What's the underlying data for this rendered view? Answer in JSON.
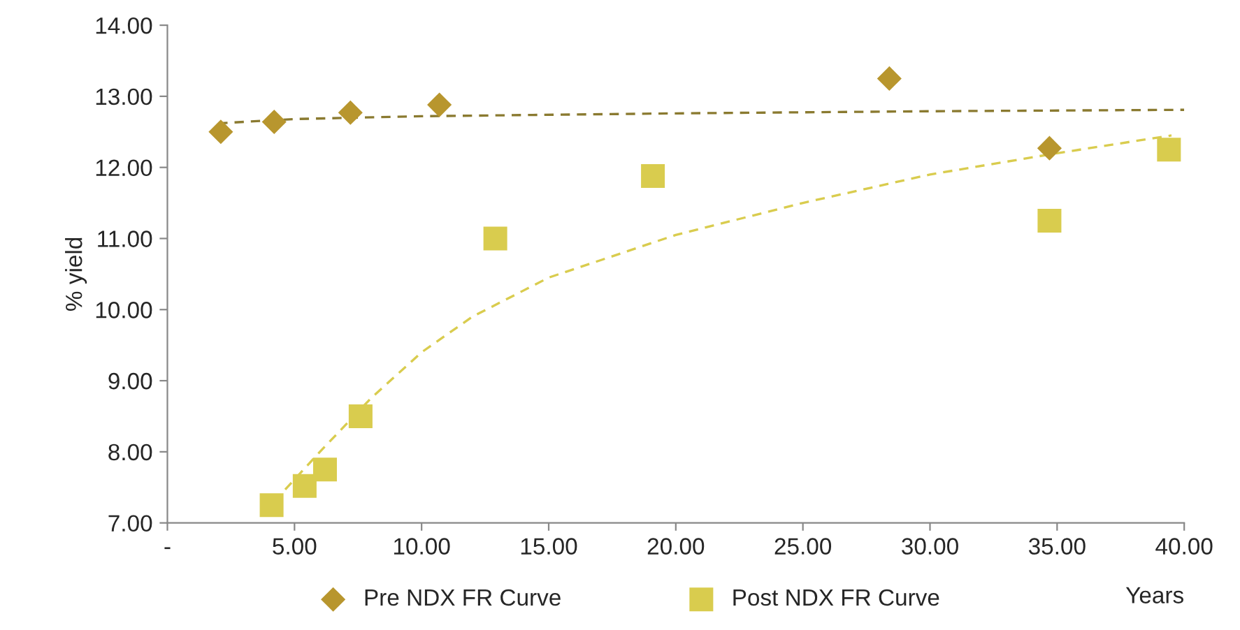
{
  "chart_data": {
    "type": "scatter",
    "xlabel": "Years",
    "ylabel": "% yield",
    "xlim": [
      0,
      40
    ],
    "xticks": [
      {
        "value": 0,
        "label": "-"
      },
      {
        "value": 5,
        "label": "5.00"
      },
      {
        "value": 10,
        "label": "10.00"
      },
      {
        "value": 15,
        "label": "15.00"
      },
      {
        "value": 20,
        "label": "20.00"
      },
      {
        "value": 25,
        "label": "25.00"
      },
      {
        "value": 30,
        "label": "30.00"
      },
      {
        "value": 35,
        "label": "35.00"
      },
      {
        "value": 40,
        "label": "40.00"
      }
    ],
    "ylim": [
      7,
      14
    ],
    "yticks": [
      {
        "value": 7,
        "label": "7.00"
      },
      {
        "value": 8,
        "label": "8.00"
      },
      {
        "value": 9,
        "label": "9.00"
      },
      {
        "value": 10,
        "label": "10.00"
      },
      {
        "value": 11,
        "label": "11.00"
      },
      {
        "value": 12,
        "label": "12.00"
      },
      {
        "value": 13,
        "label": "13.00"
      },
      {
        "value": 14,
        "label": "14.00"
      }
    ],
    "grid": false,
    "legend": "bottom",
    "series": [
      {
        "name": "Pre NDX FR Curve",
        "marker": "diamond",
        "color": "#b8962e",
        "x": [
          2.1,
          4.2,
          7.2,
          10.7,
          28.4,
          34.7
        ],
        "values": [
          12.5,
          12.64,
          12.77,
          12.88,
          13.25,
          12.27
        ]
      },
      {
        "name": "Post NDX FR Curve",
        "marker": "square",
        "color": "#d9cc4e",
        "x": [
          4.1,
          5.4,
          6.2,
          7.6,
          12.9,
          19.1,
          34.7,
          39.4
        ],
        "values": [
          7.25,
          7.52,
          7.75,
          8.5,
          11.0,
          11.88,
          11.25,
          12.25
        ]
      },
      {
        "type": "line",
        "marker": "none",
        "line_style": "dashed",
        "color": "#8a7a30",
        "x": [
          2,
          5,
          10,
          20,
          30,
          40
        ],
        "values": [
          12.62,
          12.68,
          12.72,
          12.76,
          12.79,
          12.81
        ]
      },
      {
        "type": "line",
        "marker": "none",
        "line_style": "dashed",
        "color": "#d9cc4e",
        "x": [
          4.2,
          6,
          8,
          10,
          12,
          15,
          20,
          25,
          30,
          35,
          39.5
        ],
        "values": [
          7.3,
          8.0,
          8.75,
          9.4,
          9.9,
          10.45,
          11.05,
          11.5,
          11.9,
          12.2,
          12.45
        ]
      }
    ]
  }
}
